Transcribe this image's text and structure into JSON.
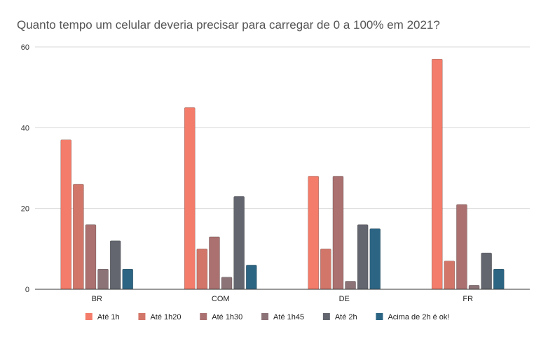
{
  "chart_data": {
    "type": "bar",
    "title": "Quanto tempo um celular deveria precisar para carregar de 0 a 100% em 2021?",
    "categories": [
      "BR",
      "COM",
      "DE",
      "FR"
    ],
    "series": [
      {
        "name": "Até 1h",
        "color": "#f47c6a",
        "values": [
          37,
          45,
          28,
          57
        ]
      },
      {
        "name": "Até 1h20",
        "color": "#d3766a",
        "values": [
          26,
          10,
          10,
          7
        ]
      },
      {
        "name": "Até 1h30",
        "color": "#ab7171",
        "values": [
          16,
          13,
          28,
          21
        ]
      },
      {
        "name": "Até 1h45",
        "color": "#8c7378",
        "values": [
          5,
          3,
          2,
          1
        ]
      },
      {
        "name": "Até 2h",
        "color": "#63666f",
        "values": [
          12,
          23,
          16,
          9
        ]
      },
      {
        "name": "Acima de 2h é ok!",
        "color": "#2c6584",
        "values": [
          5,
          6,
          15,
          5
        ]
      }
    ],
    "ylim": [
      0,
      60
    ],
    "yticks": [
      0,
      20,
      40,
      60
    ],
    "grid": true,
    "legend_position": "bottom"
  }
}
